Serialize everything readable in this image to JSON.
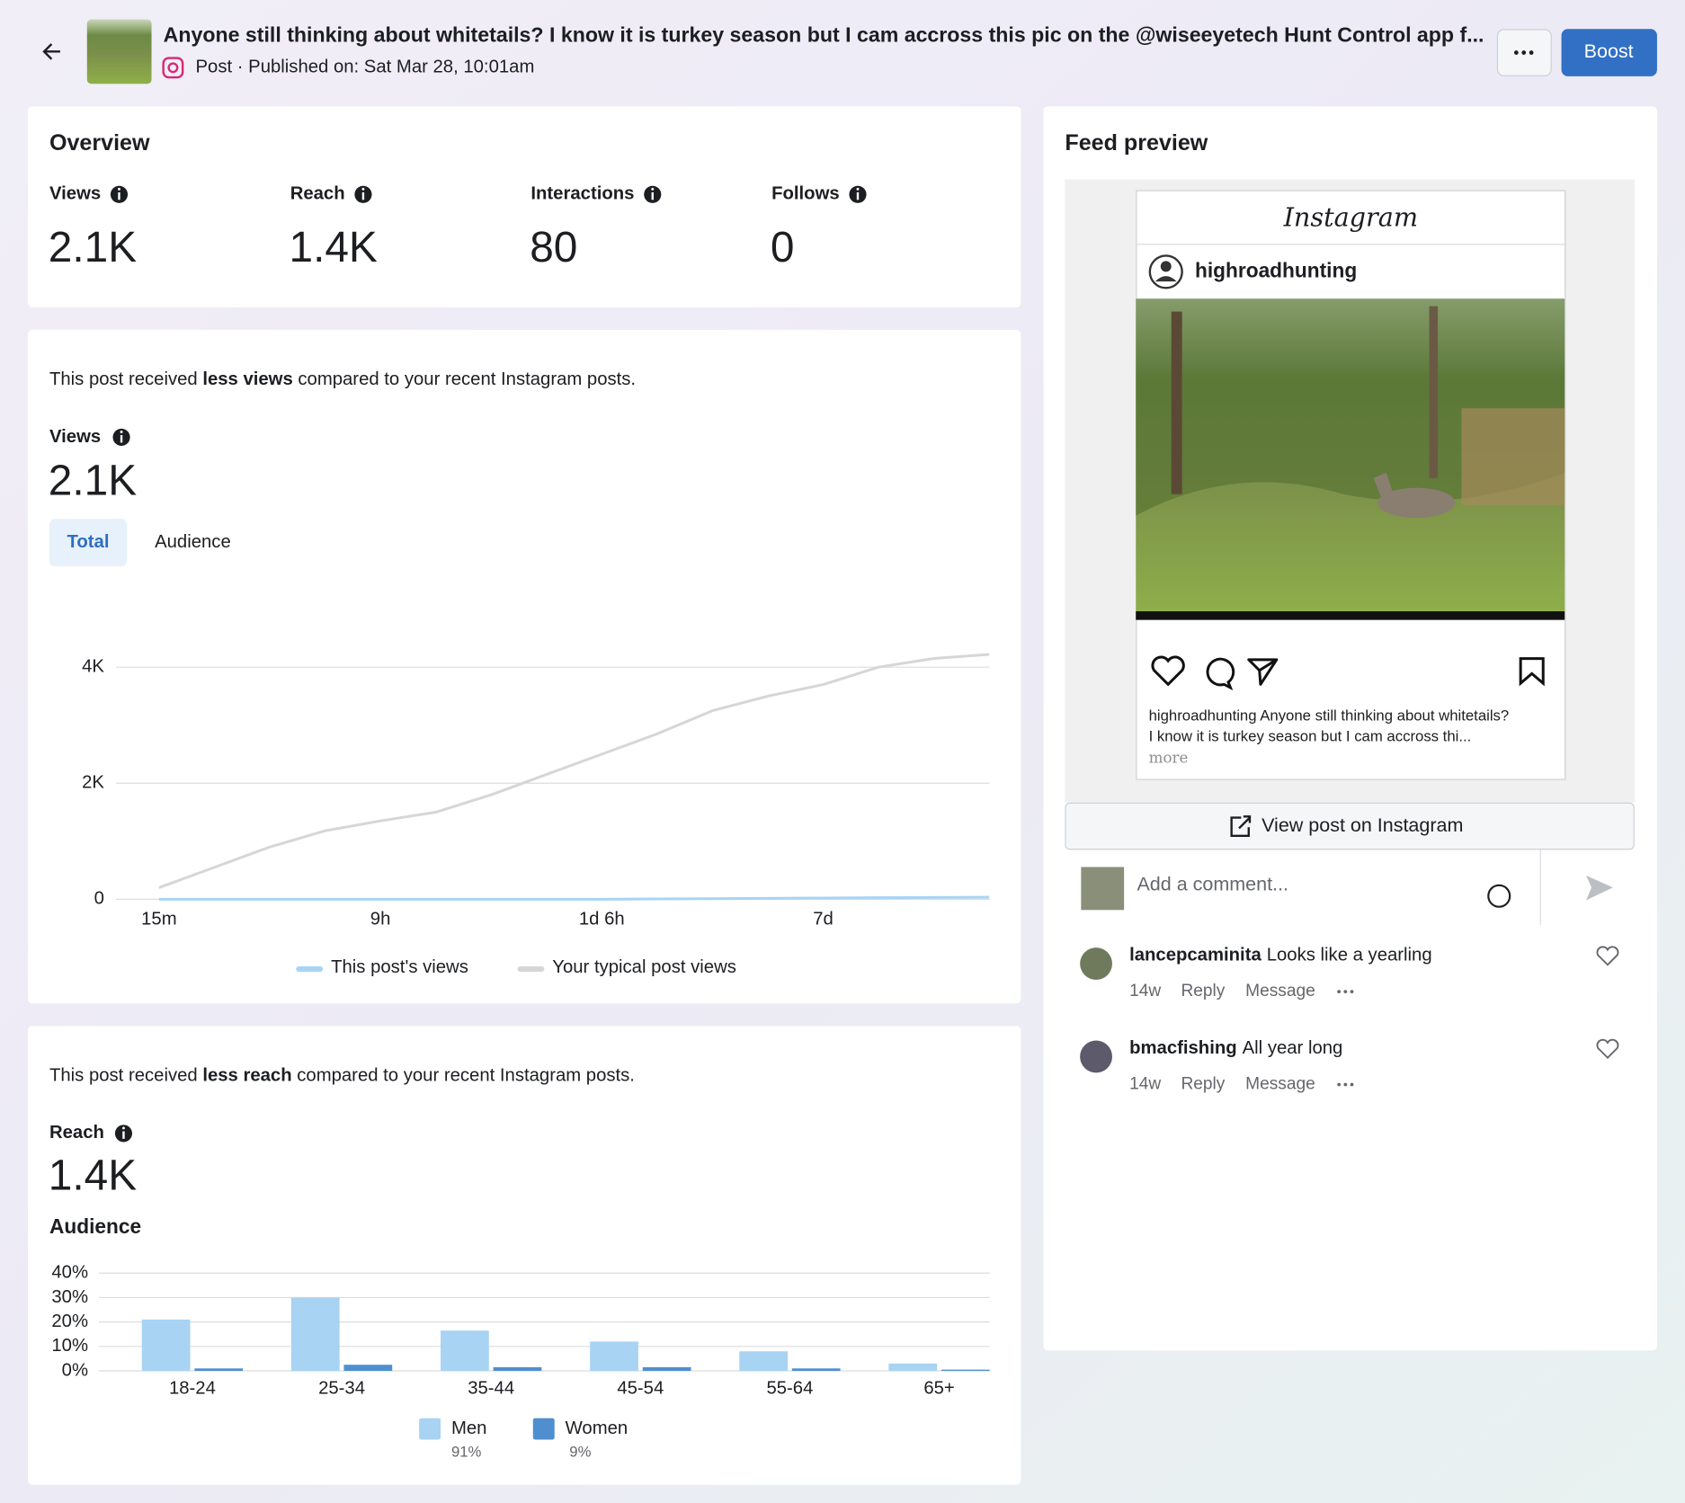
{
  "header": {
    "title": "Anyone still thinking about whitetails? I know it is turkey season but I cam accross this pic on the @wiseeyetech Hunt Control app f...",
    "subtitle": "Post · Published on: Sat Mar 28, 10:01am",
    "boost": "Boost"
  },
  "overview": {
    "title": "Overview",
    "metrics": [
      {
        "label": "Views",
        "value": "2.1K"
      },
      {
        "label": "Reach",
        "value": "1.4K"
      },
      {
        "label": "Interactions",
        "value": "80"
      },
      {
        "label": "Follows",
        "value": "0"
      }
    ]
  },
  "views": {
    "comparison": [
      "This post received ",
      "less views",
      " compared to your recent Instagram posts."
    ],
    "label": "Views",
    "value": "2.1K",
    "tabs": [
      "Total",
      "Audience"
    ]
  },
  "reach": {
    "comparison": [
      "This post received ",
      "less reach",
      " compared to your recent Instagram posts."
    ],
    "label": "Reach",
    "value": "1.4K",
    "audience_title": "Audience"
  },
  "chart_data": [
    {
      "type": "line",
      "categories": [
        "15m",
        null,
        null,
        null,
        "9h",
        null,
        null,
        null,
        "1d 6h",
        null,
        null,
        null,
        "7d",
        null,
        null,
        null
      ],
      "series": [
        {
          "name": "This post's views",
          "color": "#a8d4f5",
          "values": [
            0,
            0,
            0,
            0,
            0,
            0,
            0,
            0,
            0,
            5,
            10,
            15,
            20,
            25,
            30,
            35
          ]
        },
        {
          "name": "Your typical post views",
          "color": "#d6d6d6",
          "values": [
            200,
            550,
            900,
            1180,
            1350,
            1500,
            1800,
            2150,
            2500,
            2850,
            3250,
            3500,
            3700,
            4000,
            4150,
            4220
          ]
        }
      ],
      "ylim": [
        0,
        4400
      ],
      "yticks": [
        0,
        {
          "value": 2000,
          "label": "2K"
        },
        {
          "value": 4000,
          "label": "4K"
        }
      ],
      "grid": true
    },
    {
      "type": "bar",
      "categories": [
        "18-24",
        "25-34",
        "35-44",
        "45-54",
        "55-64",
        "65+"
      ],
      "series": [
        {
          "name": "Men",
          "share": "91%",
          "color": "#a9d3f2",
          "values": [
            21,
            30,
            16.5,
            12,
            8,
            3
          ]
        },
        {
          "name": "Women",
          "share": "9%",
          "color": "#4f8fcf",
          "values": [
            1,
            2.5,
            1.5,
            1.5,
            1,
            0.5
          ]
        }
      ],
      "ylim": [
        0,
        40
      ],
      "yticks": [
        {
          "value": 0,
          "label": "0%"
        },
        {
          "value": 10,
          "label": "10%"
        },
        {
          "value": 20,
          "label": "20%"
        },
        {
          "value": 30,
          "label": "30%"
        },
        {
          "value": 40,
          "label": "40%"
        }
      ],
      "grid": true
    }
  ],
  "feed_preview": {
    "title": "Feed preview",
    "brand": "Instagram",
    "username": "highroadhunting",
    "caption": [
      "highroadhunting Anyone still thinking about whitetails?",
      "I know it is turkey season but I cam accross thi..."
    ],
    "more": "more",
    "view_button": "View post on Instagram",
    "comment_placeholder": "Add a comment...",
    "comments": [
      {
        "user": "lancepcaminita",
        "text": "Looks like a yearling",
        "age": "14w",
        "actions": [
          "Reply",
          "Message"
        ]
      },
      {
        "user": "bmacfishing",
        "text": "All year long",
        "age": "14w",
        "actions": [
          "Reply",
          "Message"
        ]
      }
    ]
  }
}
